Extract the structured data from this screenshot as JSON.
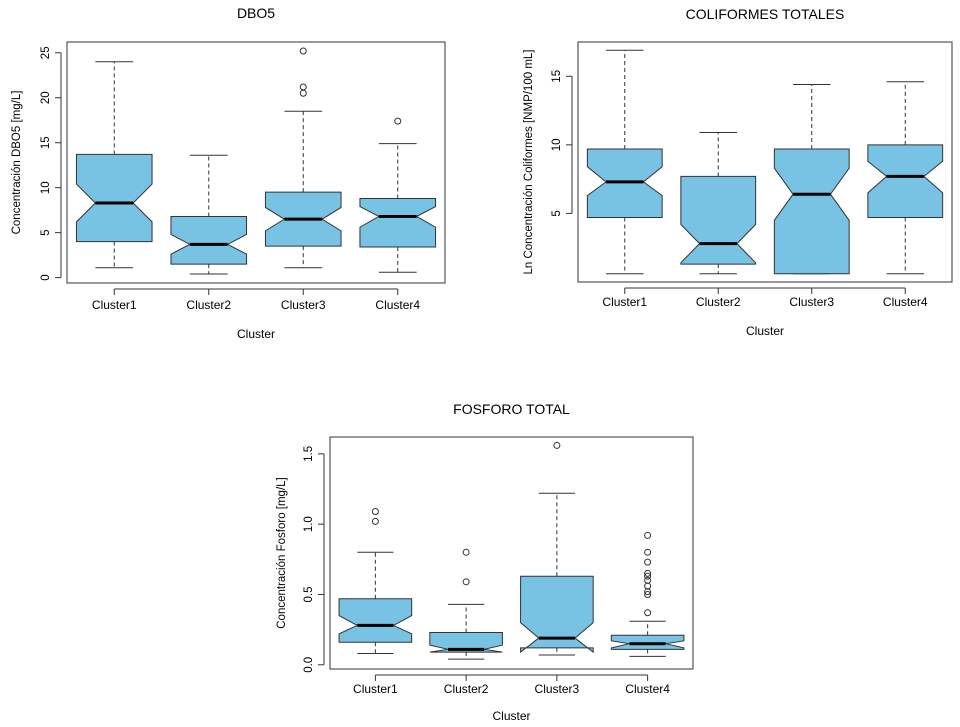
{
  "chart_data": [
    {
      "type": "boxplot",
      "title": "DBO5",
      "xlabel": "Cluster",
      "ylabel": "Concentración DBO5  [mg/L]",
      "categories": [
        "Cluster1",
        "Cluster2",
        "Cluster3",
        "Cluster4"
      ],
      "yticks": [
        "0",
        "5",
        "10",
        "15",
        "20",
        "25"
      ],
      "ytick_values": [
        0,
        5,
        10,
        15,
        20,
        25
      ],
      "ylim": [
        -0.6,
        26.2
      ],
      "notched": true,
      "fill_color": "#78c2e4",
      "boxes": [
        {
          "whisker_low": 1.1,
          "q1": 4.0,
          "median": 8.3,
          "q3": 13.7,
          "whisker_high": 24.0,
          "notch": [
            6.2,
            10.4
          ],
          "outliers": []
        },
        {
          "whisker_low": 0.4,
          "q1": 1.5,
          "median": 3.7,
          "q3": 6.8,
          "whisker_high": 13.6,
          "notch": [
            2.6,
            4.8
          ],
          "outliers": []
        },
        {
          "whisker_low": 1.1,
          "q1": 3.5,
          "median": 6.5,
          "q3": 9.5,
          "whisker_high": 18.5,
          "notch": [
            5.2,
            7.8
          ],
          "outliers": [
            20.5,
            21.2,
            25.2
          ]
        },
        {
          "whisker_low": 0.6,
          "q1": 3.4,
          "median": 6.8,
          "q3": 8.8,
          "whisker_high": 14.9,
          "notch": [
            5.6,
            7.9
          ],
          "outliers": [
            17.4
          ]
        }
      ]
    },
    {
      "type": "boxplot",
      "title": "COLIFORMES TOTALES",
      "xlabel": "Cluster",
      "ylabel": "Ln Concentración Coliformes [NMP/100 mL]",
      "categories": [
        "Cluster1",
        "Cluster2",
        "Cluster3",
        "Cluster4"
      ],
      "yticks": [
        "5",
        "10",
        "15"
      ],
      "ytick_values": [
        5,
        10,
        15
      ],
      "ylim": [
        0,
        17.5
      ],
      "notched": true,
      "fill_color": "#78c2e4",
      "boxes": [
        {
          "whisker_low": 0.6,
          "q1": 4.7,
          "median": 7.3,
          "q3": 9.7,
          "whisker_high": 16.9,
          "notch": [
            6.3,
            8.4
          ],
          "outliers": []
        },
        {
          "whisker_low": 0.6,
          "q1": 1.3,
          "median": 2.8,
          "q3": 7.7,
          "whisker_high": 10.9,
          "notch": [
            1.4,
            4.2
          ],
          "outliers": []
        },
        {
          "whisker_low": 0.6,
          "q1": 0.6,
          "median": 6.4,
          "q3": 9.7,
          "whisker_high": 14.4,
          "notch": [
            4.5,
            8.3
          ],
          "outliers": []
        },
        {
          "whisker_low": 0.6,
          "q1": 4.7,
          "median": 7.7,
          "q3": 10.0,
          "whisker_high": 14.6,
          "notch": [
            6.5,
            8.8
          ],
          "outliers": []
        }
      ]
    },
    {
      "type": "boxplot",
      "title": "FOSFORO TOTAL",
      "xlabel": "Cluster",
      "ylabel": "Concentración Fosforo [mg/L]",
      "categories": [
        "Cluster1",
        "Cluster2",
        "Cluster3",
        "Cluster4"
      ],
      "yticks": [
        "0.0",
        "0.5",
        "1.0",
        "1.5"
      ],
      "ytick_values": [
        0,
        0.5,
        1.0,
        1.5
      ],
      "ylim": [
        -0.03,
        1.62
      ],
      "notched": true,
      "fill_color": "#78c2e4",
      "boxes": [
        {
          "whisker_low": 0.08,
          "q1": 0.16,
          "median": 0.28,
          "q3": 0.47,
          "whisker_high": 0.8,
          "notch": [
            0.22,
            0.35
          ],
          "outliers": [
            1.02,
            1.09
          ]
        },
        {
          "whisker_low": 0.04,
          "q1": 0.09,
          "median": 0.11,
          "q3": 0.23,
          "whisker_high": 0.43,
          "notch": [
            0.09,
            0.14
          ],
          "outliers": [
            0.59,
            0.8
          ]
        },
        {
          "whisker_low": 0.07,
          "q1": 0.12,
          "median": 0.19,
          "q3": 0.63,
          "whisker_high": 1.22,
          "notch": [
            0.09,
            0.3
          ],
          "outliers": [
            1.56
          ]
        },
        {
          "whisker_low": 0.06,
          "q1": 0.11,
          "median": 0.15,
          "q3": 0.21,
          "whisker_high": 0.31,
          "notch": [
            0.12,
            0.17
          ],
          "outliers": [
            0.37,
            0.5,
            0.52,
            0.56,
            0.6,
            0.63,
            0.65,
            0.73,
            0.8,
            0.92
          ]
        }
      ]
    }
  ]
}
